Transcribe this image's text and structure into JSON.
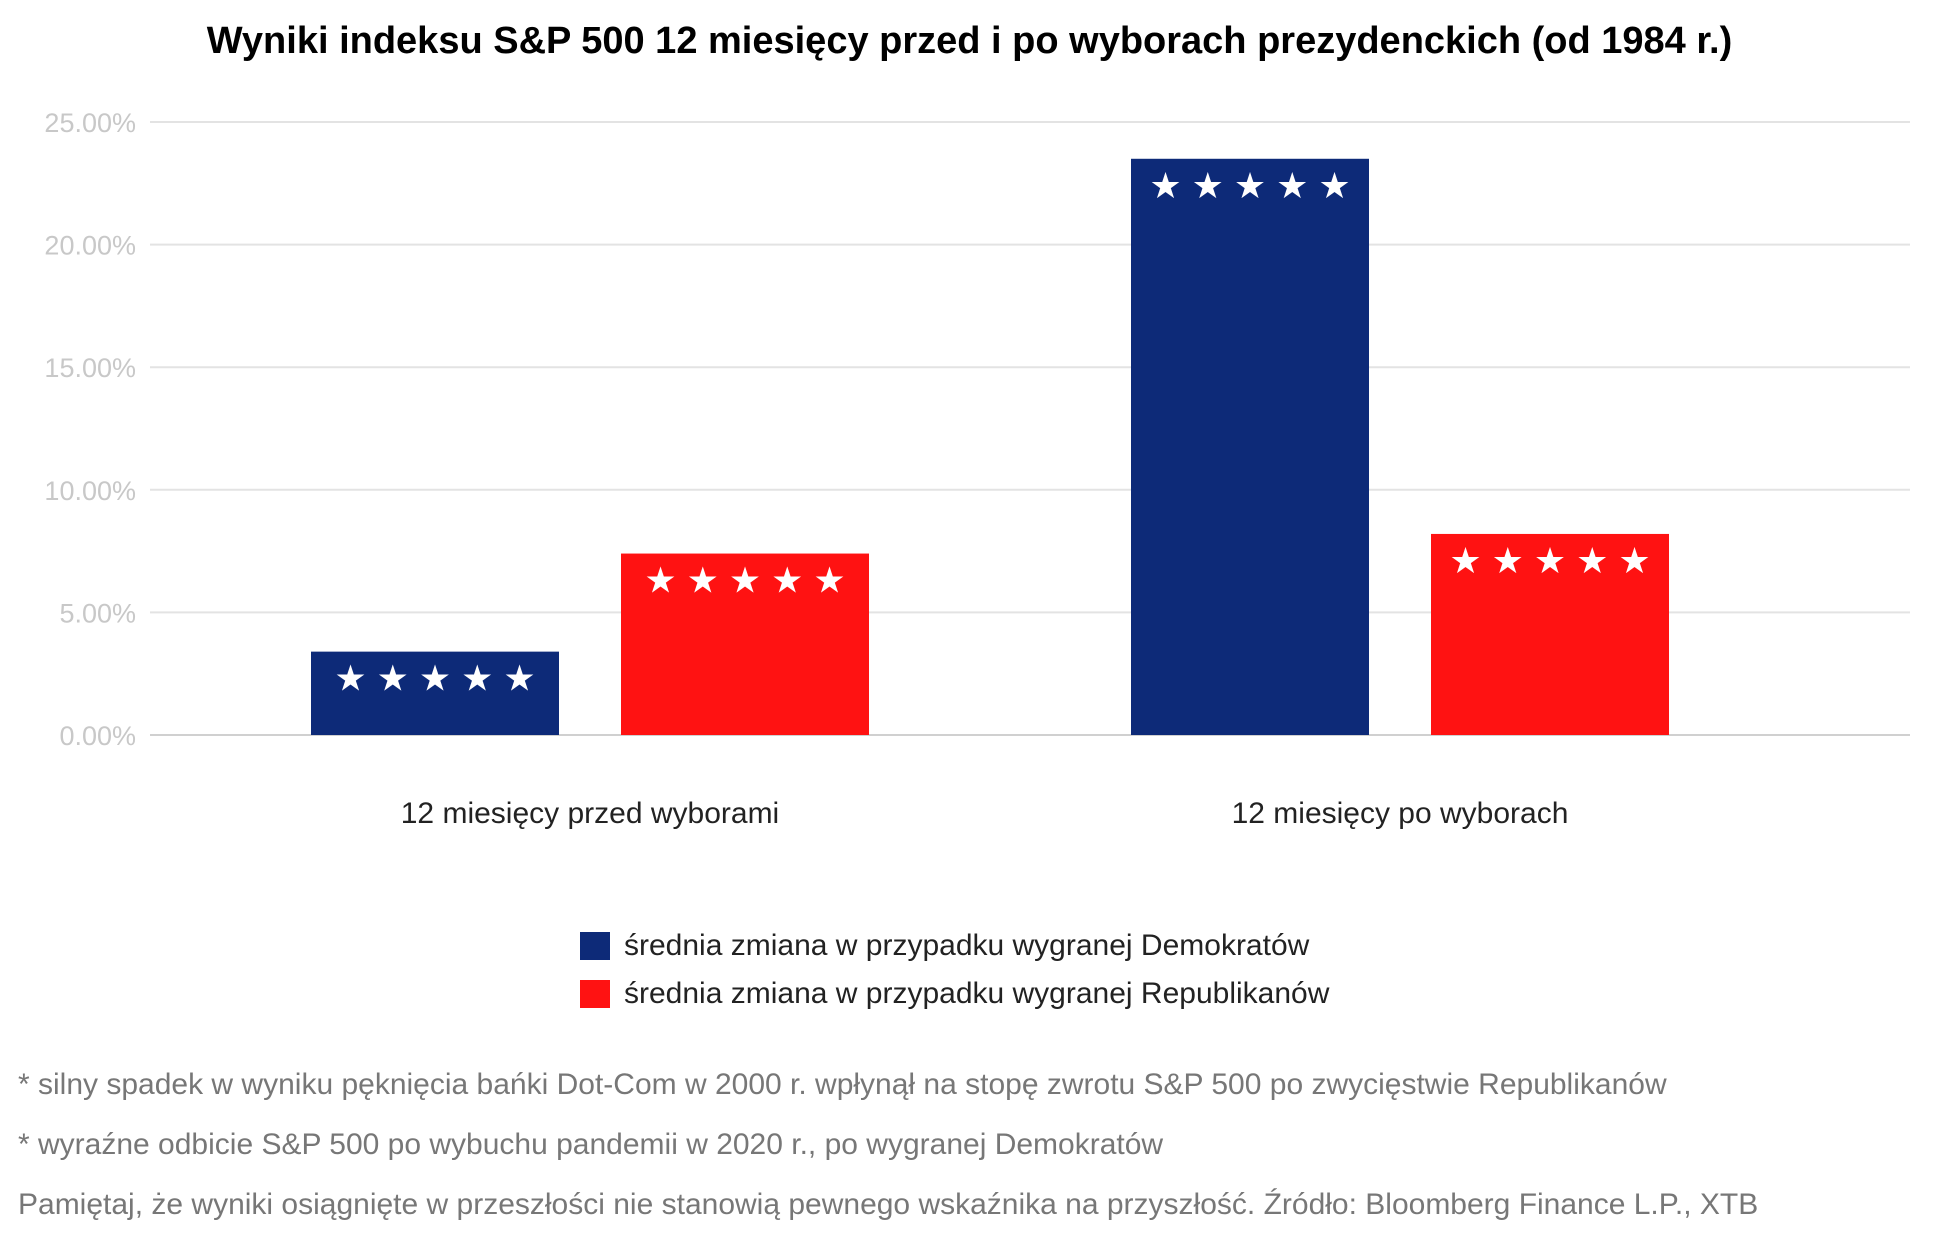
{
  "chart_data": {
    "type": "bar",
    "title": "Wyniki indeksu S&P 500 12 miesięcy przed i po wyborach prezydenckich (od 1984 r.)",
    "categories": [
      "12 miesięcy przed wyborami",
      "12 miesięcy po wyborach"
    ],
    "series": [
      {
        "name": "średnia zmiana w przypadku wygranej Demokratów",
        "values": [
          3.4,
          23.5
        ],
        "color": "#0d2a78"
      },
      {
        "name": "średnia zmiana w przypadku wygranej Republikanów",
        "values": [
          7.4,
          8.2
        ],
        "color": "#ff1212"
      }
    ],
    "ylim": [
      0,
      25
    ],
    "yticks": [
      "0.00%",
      "5.00%",
      "10.00%",
      "15.00%",
      "20.00%",
      "25.00%"
    ],
    "grid": true,
    "legend_position": "bottom-center",
    "bar_decoration": "★ ★ ★ ★ ★"
  },
  "notes": [
    "* silny spadek w wyniku pęknięcia bańki Dot-Com w 2000 r. wpłynął na stopę zwrotu S&P 500 po zwycięstwie Republikanów",
    "* wyraźne odbicie S&P 500 po wybuchu pandemii w 2020 r., po wygranej Demokratów",
    "Pamiętaj, że wyniki osiągnięte w przeszłości nie stanowią pewnego wskaźnika na przyszłość. Źródło: Bloomberg Finance L.P., XTB"
  ]
}
